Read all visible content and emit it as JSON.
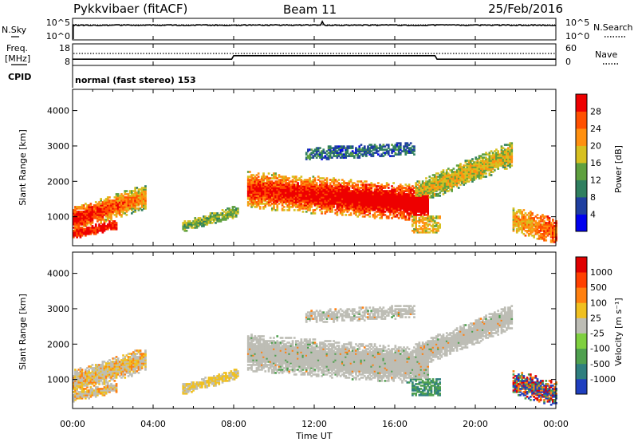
{
  "header": {
    "title": "Pykkvibaer (fitACF)",
    "beam": "Beam 11",
    "date": "25/Feb/2016"
  },
  "colors": {
    "scatter_gray": "#bdbdb5",
    "text": "#000000"
  },
  "chart_data": [
    {
      "type": "line",
      "name": "top-strip",
      "left_label": "N.Sky",
      "right_label": "N.Search",
      "left_ticks": [
        "10^5",
        "10^0"
      ],
      "right_ticks": [
        "10^5",
        "10^0"
      ]
    },
    {
      "type": "line",
      "name": "freq-nave-strip",
      "left_label_line1": "Freq.",
      "left_label_line2": "[MHz]",
      "right_label": "Nave",
      "left_ticks": [
        18,
        8
      ],
      "right_ticks": [
        60,
        0
      ],
      "cpid_label": "CPID",
      "cpid_text": "normal (fast stereo) 153",
      "freq": {
        "x": [
          0,
          7.9,
          8.0,
          18.0,
          18.1,
          24
        ],
        "y": [
          10.9,
          10.9,
          12.5,
          12.5,
          10.9,
          10.9
        ]
      }
    },
    {
      "type": "heatmap",
      "name": "power",
      "ylabel": "Slant Range [km]",
      "ylim": [
        180,
        4600
      ],
      "yticks": [
        1000,
        2000,
        3000,
        4000
      ],
      "colorbar_label": "Power [dB]",
      "colorbar_ticks": [
        4,
        8,
        12,
        16,
        20,
        24,
        28
      ],
      "colorbar_colors": [
        "#0000ee",
        "#1f3fa0",
        "#2f7f5f",
        "#5fa03f",
        "#d7c020",
        "#ff9010",
        "#ff5000",
        "#ee0000"
      ]
    },
    {
      "type": "heatmap",
      "name": "velocity",
      "ylabel": "Slant Range [km]",
      "ylim": [
        180,
        4600
      ],
      "yticks": [
        1000,
        2000,
        3000,
        4000
      ],
      "colorbar_label": "Velocity [m s⁻¹]",
      "colorbar_ticks": [
        1000,
        500,
        100,
        25,
        -25,
        -100,
        -500,
        -1000
      ],
      "colorbar_colors": [
        "#1f3fbf",
        "#2f7f7f",
        "#4fa04f",
        "#7fd03f",
        "#bdbdb5",
        "#f0c020",
        "#ff8010",
        "#ff4000",
        "#e00000"
      ]
    }
  ],
  "xaxis": {
    "xlabel": "Time UT",
    "xlim": [
      0,
      24
    ],
    "tick_values": [
      0,
      4,
      8,
      12,
      16,
      20,
      24
    ],
    "tick_labels": [
      "00:00",
      "04:00",
      "08:00",
      "12:00",
      "16:00",
      "20:00",
      "00:00"
    ]
  }
}
